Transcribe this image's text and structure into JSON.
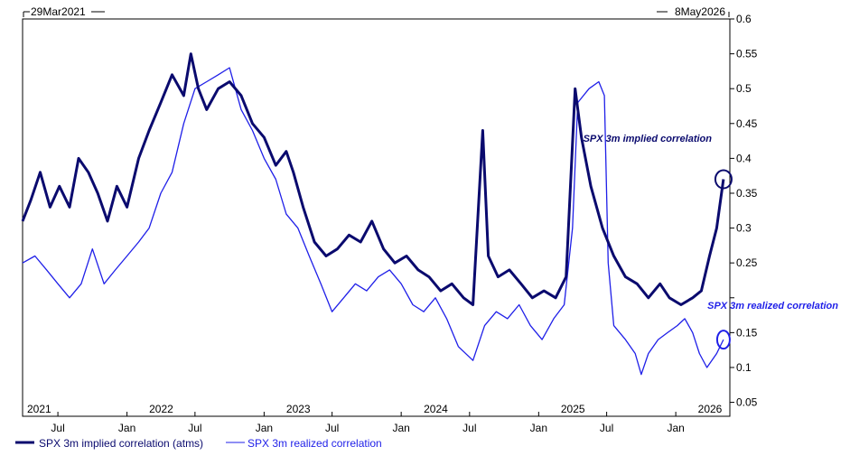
{
  "chart_data": {
    "type": "line",
    "date_range": {
      "start_label": "29Mar2021",
      "end_label": "8May2026"
    },
    "x_tick_labels": [
      {
        "label": "2021",
        "date": "2021-03-29",
        "kind": "year"
      },
      {
        "label": "Jul",
        "date": "2021-07-01",
        "kind": "month"
      },
      {
        "label": "Jan",
        "date": "2022-01-01",
        "kind": "month"
      },
      {
        "label": "2022",
        "date": "2022-03-01",
        "kind": "year"
      },
      {
        "label": "Jul",
        "date": "2022-07-01",
        "kind": "month"
      },
      {
        "label": "Jan",
        "date": "2023-01-01",
        "kind": "month"
      },
      {
        "label": "2023",
        "date": "2023-03-01",
        "kind": "year"
      },
      {
        "label": "Jul",
        "date": "2023-07-01",
        "kind": "month"
      },
      {
        "label": "Jan",
        "date": "2024-01-01",
        "kind": "month"
      },
      {
        "label": "2024",
        "date": "2024-03-01",
        "kind": "year"
      },
      {
        "label": "Jul",
        "date": "2024-07-01",
        "kind": "month"
      },
      {
        "label": "Jan",
        "date": "2025-01-01",
        "kind": "month"
      },
      {
        "label": "2025",
        "date": "2025-03-01",
        "kind": "year"
      },
      {
        "label": "Jul",
        "date": "2025-07-01",
        "kind": "month"
      },
      {
        "label": "Jan",
        "date": "2026-01-01",
        "kind": "month"
      },
      {
        "label": "2026",
        "date": "2026-03-01",
        "kind": "year"
      }
    ],
    "y_ticks": [
      0.05,
      0.1,
      0.15,
      0.2,
      0.25,
      0.3,
      0.35,
      0.4,
      0.45,
      0.5,
      0.55,
      0.6
    ],
    "y_tick_labels": [
      "0.05",
      "0.1",
      "0.15",
      "",
      "0.25",
      "0.3",
      "0.35",
      "0.4",
      "0.45",
      "0.5",
      "0.55",
      "0.6"
    ],
    "ylim": [
      0.03,
      0.6
    ],
    "grid": false,
    "legend_position": "bottom-left",
    "series": [
      {
        "name": "SPX 3m implied correlation (atms)",
        "color": "#0a0a6e",
        "style": "thick",
        "points": [
          [
            "2021-03-29",
            0.31
          ],
          [
            "2021-04-20",
            0.34
          ],
          [
            "2021-05-15",
            0.38
          ],
          [
            "2021-06-10",
            0.33
          ],
          [
            "2021-07-05",
            0.36
          ],
          [
            "2021-08-01",
            0.33
          ],
          [
            "2021-08-25",
            0.4
          ],
          [
            "2021-09-20",
            0.38
          ],
          [
            "2021-10-15",
            0.35
          ],
          [
            "2021-11-10",
            0.31
          ],
          [
            "2021-12-05",
            0.36
          ],
          [
            "2022-01-01",
            0.33
          ],
          [
            "2022-02-01",
            0.4
          ],
          [
            "2022-03-01",
            0.44
          ],
          [
            "2022-04-01",
            0.48
          ],
          [
            "2022-05-01",
            0.52
          ],
          [
            "2022-06-01",
            0.49
          ],
          [
            "2022-06-20",
            0.55
          ],
          [
            "2022-07-10",
            0.5
          ],
          [
            "2022-08-01",
            0.47
          ],
          [
            "2022-09-01",
            0.5
          ],
          [
            "2022-10-01",
            0.51
          ],
          [
            "2022-11-01",
            0.49
          ],
          [
            "2022-12-01",
            0.45
          ],
          [
            "2023-01-01",
            0.43
          ],
          [
            "2023-02-01",
            0.39
          ],
          [
            "2023-03-01",
            0.41
          ],
          [
            "2023-03-20",
            0.38
          ],
          [
            "2023-04-15",
            0.33
          ],
          [
            "2023-05-15",
            0.28
          ],
          [
            "2023-06-15",
            0.26
          ],
          [
            "2023-07-15",
            0.27
          ],
          [
            "2023-08-15",
            0.29
          ],
          [
            "2023-09-15",
            0.28
          ],
          [
            "2023-10-15",
            0.31
          ],
          [
            "2023-11-15",
            0.27
          ],
          [
            "2023-12-15",
            0.25
          ],
          [
            "2024-01-15",
            0.26
          ],
          [
            "2024-02-15",
            0.24
          ],
          [
            "2024-03-15",
            0.23
          ],
          [
            "2024-04-15",
            0.21
          ],
          [
            "2024-05-15",
            0.22
          ],
          [
            "2024-06-15",
            0.2
          ],
          [
            "2024-07-10",
            0.19
          ],
          [
            "2024-08-05",
            0.44
          ],
          [
            "2024-08-20",
            0.26
          ],
          [
            "2024-09-15",
            0.23
          ],
          [
            "2024-10-15",
            0.24
          ],
          [
            "2024-11-15",
            0.22
          ],
          [
            "2024-12-15",
            0.2
          ],
          [
            "2025-01-15",
            0.21
          ],
          [
            "2025-02-15",
            0.2
          ],
          [
            "2025-03-15",
            0.23
          ],
          [
            "2025-04-08",
            0.5
          ],
          [
            "2025-04-25",
            0.43
          ],
          [
            "2025-05-20",
            0.36
          ],
          [
            "2025-06-20",
            0.3
          ],
          [
            "2025-07-20",
            0.26
          ],
          [
            "2025-08-20",
            0.23
          ],
          [
            "2025-09-20",
            0.22
          ],
          [
            "2025-10-20",
            0.2
          ],
          [
            "2025-11-20",
            0.22
          ],
          [
            "2025-12-15",
            0.2
          ],
          [
            "2026-01-15",
            0.19
          ],
          [
            "2026-02-15",
            0.2
          ],
          [
            "2026-03-10",
            0.21
          ],
          [
            "2026-04-01",
            0.26
          ],
          [
            "2026-04-20",
            0.3
          ],
          [
            "2026-05-08",
            0.37
          ]
        ]
      },
      {
        "name": "SPX 3m realized correlation",
        "color": "#1f1fe8",
        "style": "thin",
        "points": [
          [
            "2021-03-29",
            0.25
          ],
          [
            "2021-05-01",
            0.26
          ],
          [
            "2021-06-01",
            0.24
          ],
          [
            "2021-07-01",
            0.22
          ],
          [
            "2021-08-01",
            0.2
          ],
          [
            "2021-09-01",
            0.22
          ],
          [
            "2021-10-01",
            0.27
          ],
          [
            "2021-11-01",
            0.22
          ],
          [
            "2021-12-01",
            0.24
          ],
          [
            "2022-01-01",
            0.26
          ],
          [
            "2022-02-01",
            0.28
          ],
          [
            "2022-03-01",
            0.3
          ],
          [
            "2022-04-01",
            0.35
          ],
          [
            "2022-05-01",
            0.38
          ],
          [
            "2022-06-01",
            0.45
          ],
          [
            "2022-07-01",
            0.5
          ],
          [
            "2022-08-01",
            0.51
          ],
          [
            "2022-09-01",
            0.52
          ],
          [
            "2022-10-01",
            0.53
          ],
          [
            "2022-11-01",
            0.47
          ],
          [
            "2022-12-01",
            0.44
          ],
          [
            "2023-01-01",
            0.4
          ],
          [
            "2023-02-01",
            0.37
          ],
          [
            "2023-03-01",
            0.32
          ],
          [
            "2023-04-01",
            0.3
          ],
          [
            "2023-05-01",
            0.26
          ],
          [
            "2023-06-01",
            0.22
          ],
          [
            "2023-07-01",
            0.18
          ],
          [
            "2023-08-01",
            0.2
          ],
          [
            "2023-09-01",
            0.22
          ],
          [
            "2023-10-01",
            0.21
          ],
          [
            "2023-11-01",
            0.23
          ],
          [
            "2023-12-01",
            0.24
          ],
          [
            "2024-01-01",
            0.22
          ],
          [
            "2024-02-01",
            0.19
          ],
          [
            "2024-03-01",
            0.18
          ],
          [
            "2024-04-01",
            0.2
          ],
          [
            "2024-05-01",
            0.17
          ],
          [
            "2024-06-01",
            0.13
          ],
          [
            "2024-07-10",
            0.11
          ],
          [
            "2024-08-10",
            0.16
          ],
          [
            "2024-09-10",
            0.18
          ],
          [
            "2024-10-10",
            0.17
          ],
          [
            "2024-11-10",
            0.19
          ],
          [
            "2024-12-10",
            0.16
          ],
          [
            "2025-01-10",
            0.14
          ],
          [
            "2025-02-10",
            0.17
          ],
          [
            "2025-03-10",
            0.19
          ],
          [
            "2025-04-01",
            0.3
          ],
          [
            "2025-04-15",
            0.48
          ],
          [
            "2025-05-15",
            0.5
          ],
          [
            "2025-06-10",
            0.51
          ],
          [
            "2025-06-25",
            0.49
          ],
          [
            "2025-07-05",
            0.25
          ],
          [
            "2025-07-20",
            0.16
          ],
          [
            "2025-08-20",
            0.14
          ],
          [
            "2025-09-15",
            0.12
          ],
          [
            "2025-10-01",
            0.09
          ],
          [
            "2025-10-20",
            0.12
          ],
          [
            "2025-11-15",
            0.14
          ],
          [
            "2025-12-10",
            0.15
          ],
          [
            "2026-01-05",
            0.16
          ],
          [
            "2026-01-25",
            0.17
          ],
          [
            "2026-02-15",
            0.15
          ],
          [
            "2026-03-05",
            0.12
          ],
          [
            "2026-03-25",
            0.1
          ],
          [
            "2026-04-20",
            0.12
          ],
          [
            "2026-05-08",
            0.14
          ]
        ]
      }
    ],
    "annotations": [
      {
        "text": "SPX 3m implied correlation",
        "series": 0
      },
      {
        "text": "SPX 3m realized correlation",
        "series": 1
      }
    ]
  }
}
